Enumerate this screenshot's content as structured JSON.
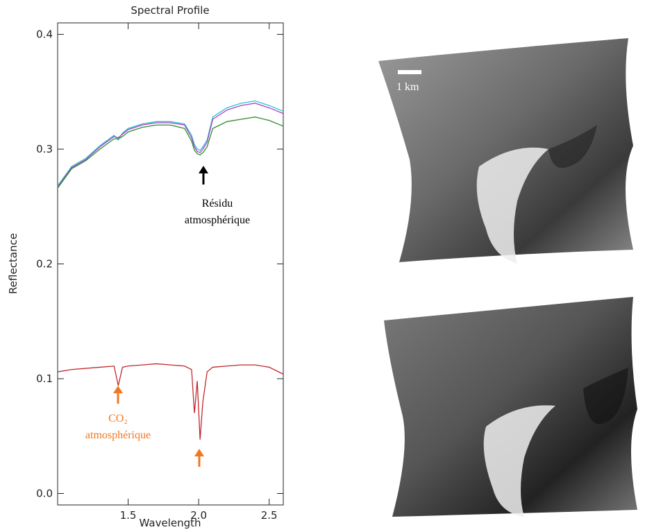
{
  "chart_data": {
    "type": "line",
    "title": "Spectral Profile",
    "xlabel": "Wavelength",
    "ylabel": "Reflectance",
    "x": [
      1.0,
      1.1,
      1.2,
      1.3,
      1.4,
      1.43,
      1.46,
      1.5,
      1.6,
      1.7,
      1.8,
      1.9,
      1.95,
      1.97,
      1.99,
      2.01,
      2.03,
      2.06,
      2.1,
      2.2,
      2.3,
      2.4,
      2.5,
      2.6
    ],
    "series": [
      {
        "color": "#22c4d4",
        "values": [
          0.268,
          0.285,
          0.292,
          0.303,
          0.312,
          0.308,
          0.314,
          0.318,
          0.322,
          0.324,
          0.324,
          0.322,
          0.312,
          0.304,
          0.3,
          0.299,
          0.302,
          0.308,
          0.328,
          0.336,
          0.34,
          0.342,
          0.338,
          0.333
        ]
      },
      {
        "color": "#b03cc8",
        "values": [
          0.267,
          0.284,
          0.291,
          0.302,
          0.311,
          0.31,
          0.313,
          0.317,
          0.321,
          0.323,
          0.323,
          0.321,
          0.31,
          0.302,
          0.298,
          0.297,
          0.3,
          0.306,
          0.326,
          0.334,
          0.338,
          0.34,
          0.336,
          0.331
        ]
      },
      {
        "color": "#2e8b2e",
        "values": [
          0.266,
          0.283,
          0.29,
          0.3,
          0.309,
          0.309,
          0.311,
          0.315,
          0.319,
          0.321,
          0.321,
          0.318,
          0.307,
          0.299,
          0.296,
          0.295,
          0.297,
          0.302,
          0.318,
          0.324,
          0.326,
          0.328,
          0.325,
          0.32
        ]
      },
      {
        "color": "#c0282c",
        "values": [
          0.106,
          0.108,
          0.109,
          0.11,
          0.111,
          0.094,
          0.11,
          0.111,
          0.112,
          0.113,
          0.112,
          0.111,
          0.108,
          0.07,
          0.098,
          0.047,
          0.08,
          0.106,
          0.11,
          0.111,
          0.112,
          0.112,
          0.11,
          0.104
        ]
      }
    ],
    "xlim": [
      1.0,
      2.6
    ],
    "ylim": [
      -0.01,
      0.41
    ],
    "xticks": [
      1.5,
      {
        "value": 2,
        "label": "2.0"
      },
      2.5
    ],
    "yticks": [
      {
        "value": 0,
        "label": "0.0"
      },
      0.1,
      0.2,
      0.3,
      0.4
    ],
    "annotations": [
      {
        "lines": [
          "Résidu",
          "atmosphérique"
        ],
        "color": "#000000"
      },
      {
        "lines": [
          "CO₂",
          "atmosphérique"
        ],
        "color": "#f07820"
      }
    ]
  },
  "scale_bar": "1 km"
}
